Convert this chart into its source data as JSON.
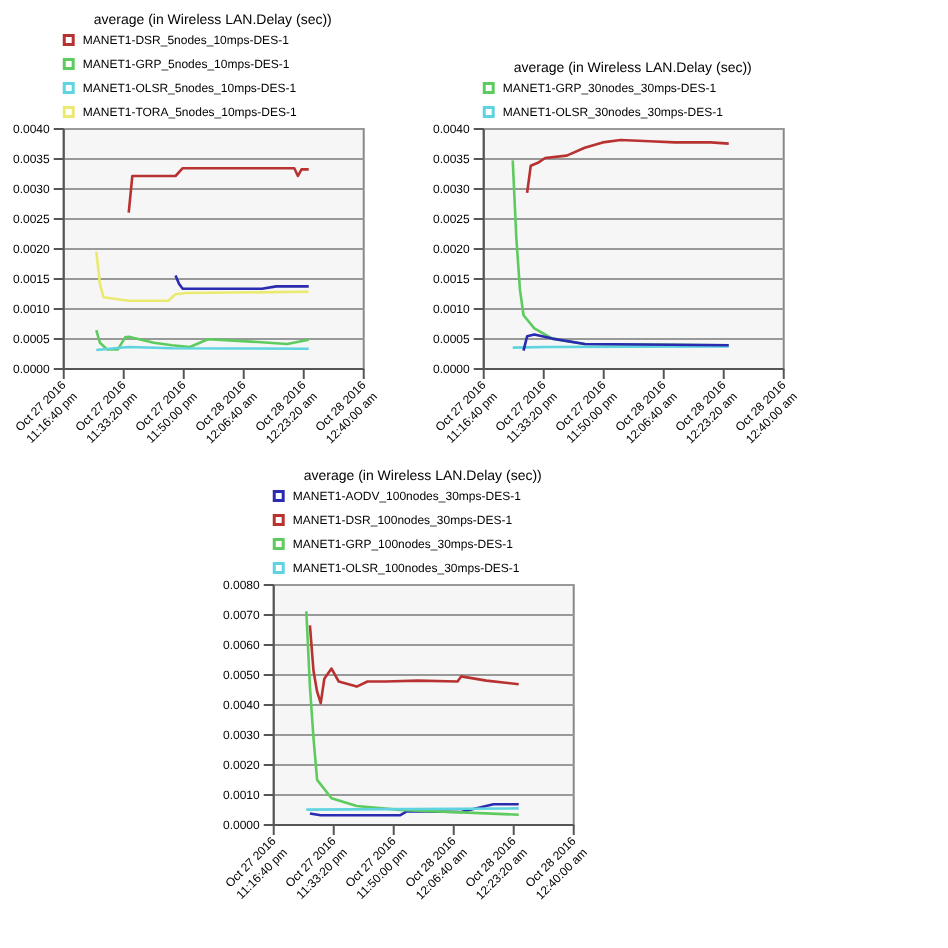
{
  "chart_data": [
    {
      "type": "line",
      "title": "average (in Wireless LAN.Delay (sec))",
      "xlim": [
        "2016-10-27T23:16:40",
        "2016-10-28T00:40:00"
      ],
      "ylim": [
        0,
        0.004
      ],
      "yticks": [
        {
          "value": 0,
          "label": "0.0000"
        },
        {
          "value": 0.0005,
          "label": "0.0005"
        },
        {
          "value": 0.001,
          "label": "0.0010"
        },
        {
          "value": 0.0015,
          "label": "0.0015"
        },
        {
          "value": 0.002,
          "label": "0.0020"
        },
        {
          "value": 0.0025,
          "label": "0.0025"
        },
        {
          "value": 0.003,
          "label": "0.0030"
        },
        {
          "value": 0.0035,
          "label": "0.0035"
        },
        {
          "value": 0.004,
          "label": "0.0040"
        }
      ],
      "xticks": [
        {
          "value": "2016-10-27T23:16:40",
          "label": "Oct 27 2016\n11:16:40 pm"
        },
        {
          "value": "2016-10-27T23:33:20",
          "label": "Oct 27 2016\n11:33:20 pm"
        },
        {
          "value": "2016-10-27T23:50:00",
          "label": "Oct 27 2016\n11:50:00 pm"
        },
        {
          "value": "2016-10-28T00:06:40",
          "label": "Oct 28 2016\n12:06:40 am"
        },
        {
          "value": "2016-10-28T00:23:20",
          "label": "Oct 28 2016\n12:23:20 am"
        },
        {
          "value": "2016-10-28T00:40:00",
          "label": "Oct 28 2016\n12:40:00 am"
        }
      ],
      "grid": "y",
      "legend": "top",
      "marker": "none",
      "line_style": "solid",
      "series": [
        {
          "name": "MANET1-DSR_5nodes_10mps-DES-1",
          "color": "#b83232",
          "x": [
            "2016-10-27T23:35",
            "2016-10-27T23:36",
            "2016-10-27T23:48",
            "2016-10-27T23:50",
            "2016-10-28T00:21",
            "2016-10-28T00:22",
            "2016-10-28T00:23",
            "2016-10-28T00:25"
          ],
          "values": [
            0.00259,
            0.0032,
            0.0032,
            0.00333,
            0.00333,
            0.0032,
            0.00331,
            0.00331
          ]
        },
        {
          "name": "MANET1-GRP_5nodes_10mps-DES-1",
          "color": "#5ecb5e",
          "x": [
            "2016-10-27T23:26",
            "2016-10-27T23:27",
            "2016-10-27T23:29",
            "2016-10-27T23:32",
            "2016-10-27T23:34",
            "2016-10-27T23:35",
            "2016-10-27T23:42",
            "2016-10-27T23:47",
            "2016-10-27T23:52",
            "2016-10-27T23:57",
            "2016-10-28T00:09",
            "2016-10-28T00:19",
            "2016-10-28T00:25"
          ],
          "values": [
            0.00063,
            0.00042,
            0.00031,
            0.00031,
            0.00051,
            0.00052,
            0.00042,
            0.00038,
            0.00035,
            0.00048,
            0.00044,
            0.0004,
            0.00047
          ]
        },
        {
          "name": "MANET1-OLSR_5nodes_10mps-DES-1",
          "color": "#5fd3e0",
          "x": [
            "2016-10-27T23:26",
            "2016-10-27T23:35",
            "2016-10-27T23:47",
            "2016-10-28T00:25"
          ],
          "values": [
            0.0003,
            0.00035,
            0.00033,
            0.00032
          ]
        },
        {
          "name": "MANET1-TORA_5nodes_10mps-DES-1",
          "color": "#eaea70",
          "x": [
            "2016-10-27T23:26",
            "2016-10-27T23:27",
            "2016-10-27T23:28",
            "2016-10-27T23:35",
            "2016-10-27T23:46",
            "2016-10-27T23:48",
            "2016-10-27T23:51",
            "2016-10-28T00:25"
          ],
          "values": [
            0.00194,
            0.0014,
            0.00118,
            0.00112,
            0.00112,
            0.00123,
            0.00125,
            0.00127
          ]
        },
        {
          "color": "#2b2bb0",
          "x": [
            "2016-10-27T23:48",
            "2016-10-27T23:49",
            "2016-10-27T23:50",
            "2016-10-28T00:12",
            "2016-10-28T00:16",
            "2016-10-28T00:25"
          ],
          "values": [
            0.00154,
            0.0014,
            0.00132,
            0.00132,
            0.00136,
            0.00136
          ]
        }
      ]
    },
    {
      "type": "line",
      "title": "average (in Wireless LAN.Delay (sec))",
      "xlim": [
        "2016-10-27T23:16:40",
        "2016-10-28T00:40:00"
      ],
      "ylim": [
        0,
        0.004
      ],
      "yticks": [
        {
          "value": 0,
          "label": "0.0000"
        },
        {
          "value": 0.0005,
          "label": "0.0005"
        },
        {
          "value": 0.001,
          "label": "0.0010"
        },
        {
          "value": 0.0015,
          "label": "0.0015"
        },
        {
          "value": 0.002,
          "label": "0.0020"
        },
        {
          "value": 0.0025,
          "label": "0.0025"
        },
        {
          "value": 0.003,
          "label": "0.0030"
        },
        {
          "value": 0.0035,
          "label": "0.0035"
        },
        {
          "value": 0.004,
          "label": "0.0040"
        }
      ],
      "xticks": [
        {
          "value": "2016-10-27T23:16:40",
          "label": "Oct 27 2016\n11:16:40 pm"
        },
        {
          "value": "2016-10-27T23:33:20",
          "label": "Oct 27 2016\n11:33:20 pm"
        },
        {
          "value": "2016-10-27T23:50:00",
          "label": "Oct 27 2016\n11:50:00 pm"
        },
        {
          "value": "2016-10-28T00:06:40",
          "label": "Oct 28 2016\n12:06:40 am"
        },
        {
          "value": "2016-10-28T00:23:20",
          "label": "Oct 28 2016\n12:23:20 am"
        },
        {
          "value": "2016-10-28T00:40:00",
          "label": "Oct 28 2016\n12:40:00 am"
        }
      ],
      "grid": "y",
      "legend": "top",
      "marker": "none",
      "line_style": "solid",
      "series": [
        {
          "name": "MANET1-GRP_30nodes_30mps-DES-1",
          "color": "#5ecb5e",
          "x": [
            "2016-10-27T23:25",
            "2016-10-27T23:26",
            "2016-10-27T23:27",
            "2016-10-27T23:28",
            "2016-10-27T23:31",
            "2016-10-27T23:36",
            "2016-10-27T23:45",
            "2016-10-28T00:25"
          ],
          "values": [
            0.00346,
            0.00217,
            0.00131,
            0.00088,
            0.00066,
            0.00049,
            0.0004,
            0.00038
          ]
        },
        {
          "name": "MANET1-OLSR_30nodes_30mps-DES-1",
          "color": "#5fd3e0",
          "x": [
            "2016-10-27T23:25",
            "2016-10-27T23:34",
            "2016-10-28T00:25"
          ],
          "values": [
            0.00034,
            0.00035,
            0.00036
          ]
        },
        {
          "color": "#b83232",
          "x": [
            "2016-10-27T23:29",
            "2016-10-27T23:30",
            "2016-10-27T23:32",
            "2016-10-27T23:34",
            "2016-10-27T23:40",
            "2016-10-27T23:45",
            "2016-10-27T23:50",
            "2016-10-27T23:55",
            "2016-10-28T00:03",
            "2016-10-28T00:10",
            "2016-10-28T00:20",
            "2016-10-28T00:25"
          ],
          "values": [
            0.00292,
            0.00337,
            0.00342,
            0.0035,
            0.00354,
            0.00367,
            0.00376,
            0.0038,
            0.00378,
            0.00376,
            0.00376,
            0.00374
          ]
        },
        {
          "color": "#2b2bb0",
          "x": [
            "2016-10-27T23:28",
            "2016-10-27T23:29",
            "2016-10-27T23:31",
            "2016-10-27T23:36",
            "2016-10-27T23:45",
            "2016-10-28T00:25"
          ],
          "values": [
            0.00029,
            0.00053,
            0.00056,
            0.00049,
            0.0004,
            0.00038
          ]
        }
      ]
    },
    {
      "type": "line",
      "title": "average (in Wireless LAN.Delay (sec))",
      "xlim": [
        "2016-10-27T23:16:40",
        "2016-10-28T00:40:00"
      ],
      "ylim": [
        0,
        0.008
      ],
      "yticks": [
        {
          "value": 0,
          "label": "0.0000"
        },
        {
          "value": 0.001,
          "label": "0.0010"
        },
        {
          "value": 0.002,
          "label": "0.0020"
        },
        {
          "value": 0.003,
          "label": "0.0030"
        },
        {
          "value": 0.004,
          "label": "0.0040"
        },
        {
          "value": 0.005,
          "label": "0.0050"
        },
        {
          "value": 0.006,
          "label": "0.0060"
        },
        {
          "value": 0.007,
          "label": "0.0070"
        },
        {
          "value": 0.008,
          "label": "0.0080"
        }
      ],
      "xticks": [
        {
          "value": "2016-10-27T23:16:40",
          "label": "Oct 27 2016\n11:16:40 pm"
        },
        {
          "value": "2016-10-27T23:33:20",
          "label": "Oct 27 2016\n11:33:20 pm"
        },
        {
          "value": "2016-10-27T23:50:00",
          "label": "Oct 27 2016\n11:50:00 pm"
        },
        {
          "value": "2016-10-28T00:06:40",
          "label": "Oct 28 2016\n12:06:40 am"
        },
        {
          "value": "2016-10-28T00:23:20",
          "label": "Oct 28 2016\n12:23:20 am"
        },
        {
          "value": "2016-10-28T00:40:00",
          "label": "Oct 28 2016\n12:40:00 am"
        }
      ],
      "grid": "y",
      "legend": "top",
      "marker": "none",
      "line_style": "solid",
      "series": [
        {
          "name": "MANET1-AODV_100nodes_30mps-DES-1",
          "color": "#2b2bb0",
          "x": [
            "2016-10-27T23:27",
            "2016-10-27T23:30",
            "2016-10-27T23:40",
            "2016-10-27T23:52",
            "2016-10-27T23:54",
            "2016-10-28T00:09",
            "2016-10-28T00:13",
            "2016-10-28T00:18",
            "2016-10-28T00:25"
          ],
          "values": [
            0.00035,
            0.00029,
            0.00029,
            0.00029,
            0.00043,
            0.0004,
            0.00052,
            0.00066,
            0.00066
          ]
        },
        {
          "name": "MANET1-DSR_100nodes_30mps-DES-1",
          "color": "#b83232",
          "x": [
            "2016-10-27T23:27",
            "2016-10-27T23:28",
            "2016-10-27T23:29",
            "2016-10-27T23:30",
            "2016-10-27T23:31",
            "2016-10-27T23:33",
            "2016-10-27T23:35",
            "2016-10-27T23:40",
            "2016-10-27T23:43",
            "2016-10-27T23:48",
            "2016-10-27T23:57",
            "2016-10-28T00:08",
            "2016-10-28T00:09",
            "2016-10-28T00:16",
            "2016-10-28T00:25"
          ],
          "values": [
            0.00662,
            0.0051,
            0.00441,
            0.00403,
            0.00484,
            0.00518,
            0.00475,
            0.00458,
            0.00475,
            0.00475,
            0.00478,
            0.00475,
            0.00492,
            0.00478,
            0.00466
          ]
        },
        {
          "name": "MANET1-GRP_100nodes_30mps-DES-1",
          "color": "#5ecb5e",
          "x": [
            "2016-10-27T23:26",
            "2016-10-27T23:27",
            "2016-10-27T23:28",
            "2016-10-27T23:29",
            "2016-10-27T23:33",
            "2016-10-27T23:40",
            "2016-10-27T23:52",
            "2016-10-28T00:25"
          ],
          "values": [
            0.00709,
            0.00458,
            0.00285,
            0.00147,
            0.00086,
            0.0006,
            0.00047,
            0.00031
          ]
        },
        {
          "name": "MANET1-OLSR_100nodes_30mps-DES-1",
          "color": "#5fd3e0",
          "x": [
            "2016-10-27T23:26",
            "2016-10-28T00:25"
          ],
          "values": [
            0.00048,
            0.00052
          ]
        }
      ]
    }
  ]
}
